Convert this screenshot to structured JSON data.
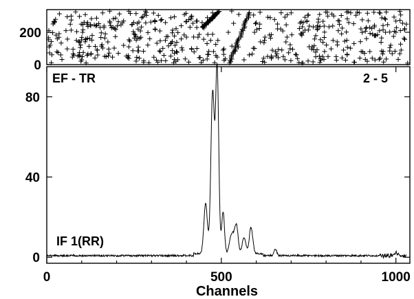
{
  "chart_data": [
    {
      "type": "scatter",
      "panel": "top",
      "marker": "plus",
      "xlim": [
        0,
        1040
      ],
      "ylim": [
        0,
        340
      ],
      "yticks": [
        0,
        200
      ],
      "ytick_labels": [
        "0",
        "200"
      ],
      "grid": false,
      "description_of_points": "dense random plus markers filling the panel except a sparse diagonal band between channels ~440 and ~600",
      "series": [
        {
          "values_note": "approximate, sampled",
          "x": [
            10,
            25,
            40,
            55,
            70,
            85,
            100,
            115,
            130,
            145,
            160,
            175,
            190,
            205,
            220,
            235,
            250,
            265,
            280,
            295,
            310,
            325,
            340,
            355,
            370,
            385,
            400,
            415,
            430,
            445,
            460,
            475,
            490,
            505,
            520,
            535,
            550,
            565,
            580,
            595,
            610,
            625,
            640,
            655,
            670,
            685,
            700,
            715,
            730,
            745,
            760,
            775,
            790,
            805,
            820,
            835,
            850,
            865,
            880,
            895,
            910,
            925,
            940,
            955,
            970,
            985,
            1000,
            1015,
            1030
          ],
          "y": [
            120,
            280,
            60,
            210,
            300,
            150,
            30,
            250,
            180,
            90,
            320,
            140,
            230,
            70,
            270,
            110,
            190,
            40,
            310,
            160,
            220,
            80,
            260,
            130,
            20,
            240,
            170,
            300,
            100,
            260,
            290,
            320,
            150,
            90,
            200,
            255,
            310,
            30,
            60,
            100,
            250,
            170,
            290,
            80,
            220,
            140,
            320,
            60,
            190,
            270,
            110,
            240,
            50,
            300,
            150,
            210,
            90,
            260,
            130,
            320,
            70,
            230,
            180,
            40,
            280,
            120,
            200,
            90,
            250
          ]
        }
      ]
    },
    {
      "type": "line",
      "panel": "bottom",
      "xlabel": "Channels",
      "ylabel": "",
      "xlim": [
        0,
        1040
      ],
      "ylim": [
        -3,
        95
      ],
      "xticks": [
        0,
        500,
        1000
      ],
      "xtick_labels": [
        "0",
        "500",
        "1000"
      ],
      "yticks": [
        0,
        40,
        80
      ],
      "ytick_labels": [
        "0",
        "40",
        "80"
      ],
      "grid": false,
      "annotations": [
        "EF - TR",
        "2 - 5",
        "IF 1(RR)"
      ],
      "peaks": [
        {
          "x": 455,
          "y": 25,
          "w": 5
        },
        {
          "x": 475,
          "y": 80,
          "w": 5
        },
        {
          "x": 488,
          "y": 92,
          "w": 4.5
        },
        {
          "x": 505,
          "y": 21,
          "w": 4
        },
        {
          "x": 530,
          "y": 10,
          "w": 6
        },
        {
          "x": 543,
          "y": 14,
          "w": 5
        },
        {
          "x": 565,
          "y": 8,
          "w": 5
        },
        {
          "x": 585,
          "y": 13,
          "w": 5
        },
        {
          "x": 655,
          "y": 3.2,
          "w": 4
        },
        {
          "x": 1000,
          "y": 1.5,
          "w": 4
        }
      ],
      "baseline": 0.8
    }
  ]
}
